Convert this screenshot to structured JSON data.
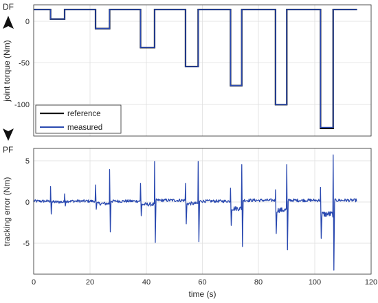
{
  "chart_data": [
    {
      "type": "line",
      "ylabel": "joint torque (Nm)",
      "xlabel": "",
      "xlim": [
        0,
        120
      ],
      "ylim": [
        -133,
        5
      ],
      "xticks": [
        0,
        20,
        40,
        60,
        80,
        100,
        120
      ],
      "yticks": [
        0,
        -50,
        -100
      ],
      "grid": true,
      "legend_placement": "bottom-left",
      "side_labels": {
        "top": "DF",
        "bottom": "PF"
      },
      "colors": {
        "reference": "#000000",
        "measured": "#2a49b0"
      },
      "step_pulses": [
        {
          "start": 6,
          "end": 11,
          "level": -10
        },
        {
          "start": 22,
          "end": 27,
          "level": -20
        },
        {
          "start": 38,
          "end": 43,
          "level": -40
        },
        {
          "start": 54,
          "end": 58.5,
          "level": -60
        },
        {
          "start": 70,
          "end": 74,
          "level": -80
        },
        {
          "start": 86,
          "end": 90,
          "level": -100
        },
        {
          "start": 102,
          "end": 106.5,
          "level": -125
        }
      ],
      "x_end": 115,
      "series": [
        {
          "name": "reference",
          "x": [
            0,
            6,
            6,
            11,
            11,
            22,
            22,
            27,
            27,
            38,
            38,
            43,
            43,
            54,
            54,
            58.5,
            58.5,
            70,
            70,
            74,
            74,
            86,
            86,
            90,
            90,
            102,
            102,
            106.5,
            106.5,
            115
          ],
          "values": [
            0,
            0,
            -10,
            -10,
            0,
            0,
            -20,
            -20,
            0,
            0,
            -40,
            -40,
            0,
            0,
            -60,
            -60,
            0,
            0,
            -80,
            -80,
            0,
            0,
            -100,
            -100,
            0,
            0,
            -125,
            -125,
            0,
            0
          ]
        },
        {
          "name": "measured",
          "x": [
            0,
            6,
            6,
            11,
            11,
            22,
            22,
            27,
            27,
            38,
            38,
            43,
            43,
            54,
            54,
            58.5,
            58.5,
            70,
            70,
            74,
            74,
            86,
            86,
            90,
            90,
            102,
            102,
            106.5,
            106.5,
            115
          ],
          "values": [
            0,
            0,
            -10,
            -10,
            0,
            0,
            -20,
            -20,
            0,
            0,
            -40,
            -40,
            0,
            0,
            -60,
            -60,
            0,
            0,
            -80,
            -80,
            0,
            0,
            -100,
            -100,
            0,
            0,
            -124,
            -124,
            0,
            0
          ]
        }
      ]
    },
    {
      "type": "line",
      "ylabel": "tracking error (Nm)",
      "xlabel": "time (s)",
      "xlim": [
        0,
        120
      ],
      "ylim": [
        -9,
        6.5
      ],
      "xticks": [
        0,
        20,
        40,
        60,
        80,
        100,
        120
      ],
      "yticks": [
        5,
        0,
        -5
      ],
      "grid": true,
      "colors": {
        "error": "#2a49b0"
      },
      "baseline_segments": [
        {
          "start": 0,
          "end": 6,
          "level": 0
        },
        {
          "start": 6,
          "end": 11,
          "level": -0.1
        },
        {
          "start": 11,
          "end": 22,
          "level": 0
        },
        {
          "start": 22,
          "end": 27,
          "level": -0.3
        },
        {
          "start": 27,
          "end": 38,
          "level": 0
        },
        {
          "start": 38,
          "end": 43,
          "level": -0.4
        },
        {
          "start": 43,
          "end": 54,
          "level": 0.1
        },
        {
          "start": 54,
          "end": 58.5,
          "level": -0.3
        },
        {
          "start": 58.5,
          "end": 70,
          "level": 0
        },
        {
          "start": 70,
          "end": 74,
          "level": -0.9
        },
        {
          "start": 74,
          "end": 86,
          "level": 0.1
        },
        {
          "start": 86,
          "end": 90,
          "level": -1.1
        },
        {
          "start": 90,
          "end": 102,
          "level": 0.1
        },
        {
          "start": 102,
          "end": 106.5,
          "level": -1.6
        },
        {
          "start": 106.5,
          "end": 115,
          "level": 0.1
        }
      ],
      "spikes": [
        {
          "x": 6,
          "min": -1.6,
          "max": 1.8
        },
        {
          "x": 11,
          "min": -0.6,
          "max": 0.9
        },
        {
          "x": 22,
          "min": -1.0,
          "max": 2.0
        },
        {
          "x": 27,
          "min": -3.8,
          "max": 3.9
        },
        {
          "x": 38,
          "min": -1.8,
          "max": 2.2
        },
        {
          "x": 43,
          "min": -5.1,
          "max": 4.9
        },
        {
          "x": 54,
          "min": -2.8,
          "max": 2.2
        },
        {
          "x": 58.5,
          "min": -5.0,
          "max": 4.9
        },
        {
          "x": 70,
          "min": -3.0,
          "max": 1.6
        },
        {
          "x": 74,
          "min": -5.6,
          "max": 4.5
        },
        {
          "x": 86,
          "min": -4.0,
          "max": 1.4
        },
        {
          "x": 90,
          "min": -6.0,
          "max": 4.5
        },
        {
          "x": 102,
          "min": -4.6,
          "max": 1.7
        },
        {
          "x": 106.5,
          "min": -8.5,
          "max": 5.7
        }
      ]
    }
  ]
}
